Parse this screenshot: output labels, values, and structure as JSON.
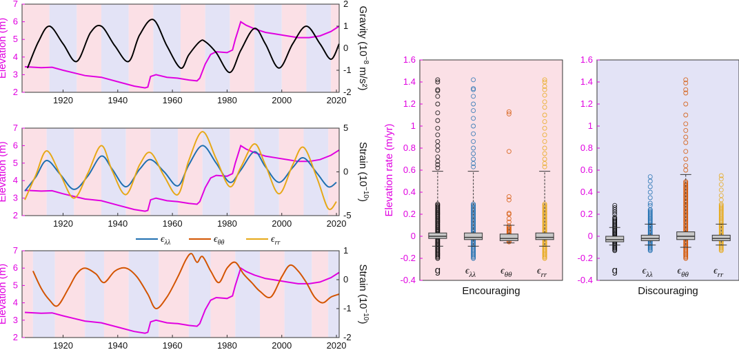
{
  "colors": {
    "elevation": "#e000e0",
    "gravity": "#000000",
    "lambda": "#1f6fb0",
    "theta": "#d35400",
    "rr": "#e6a817",
    "pink": "#fbe0e6",
    "blue": "#e3e3f6"
  },
  "chart_data": [
    {
      "type": "line",
      "panel": "gravity",
      "xlim": [
        1905,
        2021
      ],
      "xticks": [
        1920,
        1940,
        1960,
        1980,
        2000,
        2020
      ],
      "left_axis": {
        "label": "Elevation (m)",
        "ylim": [
          2,
          7
        ],
        "ticks": [
          2,
          3,
          4,
          5,
          6,
          7
        ]
      },
      "right_axis": {
        "label": "Gravity (10⁻⁸ m/s²)",
        "ylim": [
          -2,
          2
        ],
        "ticks": [
          -2,
          -1,
          0,
          1,
          2
        ]
      },
      "bands": [
        {
          "x0": 1905,
          "x1": 1915,
          "c": "p"
        },
        {
          "x0": 1915,
          "x1": 1925,
          "c": "b"
        },
        {
          "x0": 1925,
          "x1": 1934,
          "c": "p"
        },
        {
          "x0": 1934,
          "x1": 1944,
          "c": "b"
        },
        {
          "x0": 1944,
          "x1": 1953,
          "c": "p"
        },
        {
          "x0": 1953,
          "x1": 1963,
          "c": "b"
        },
        {
          "x0": 1963,
          "x1": 1972,
          "c": "p"
        },
        {
          "x0": 1972,
          "x1": 1981,
          "c": "b"
        },
        {
          "x0": 1981,
          "x1": 1990,
          "c": "p"
        },
        {
          "x0": 1990,
          "x1": 2000,
          "c": "b"
        },
        {
          "x0": 2000,
          "x1": 2009,
          "c": "p"
        },
        {
          "x0": 2009,
          "x1": 2018,
          "c": "b"
        },
        {
          "x0": 2018,
          "x1": 2021,
          "c": "p"
        }
      ],
      "series": [
        {
          "name": "gravity",
          "axis": "right",
          "color": "#000000",
          "x": [
            1907,
            1911,
            1915,
            1920,
            1925,
            1930,
            1934,
            1939,
            1944,
            1948,
            1953,
            1958,
            1963,
            1966,
            1970,
            1972,
            1976,
            1981,
            1985,
            1990,
            1994,
            1999,
            2004,
            2009,
            2014,
            2018,
            2021
          ],
          "y": [
            -0.9,
            0.3,
            1.0,
            0.2,
            -0.6,
            0.7,
            1.0,
            0.1,
            -0.6,
            0.6,
            1.3,
            0.1,
            -0.9,
            -0.3,
            0.3,
            0.3,
            -0.2,
            -1.1,
            -0.1,
            0.9,
            0.2,
            -0.9,
            0.2,
            1.0,
            0.2,
            -0.5,
            0.2
          ]
        }
      ]
    },
    {
      "type": "line",
      "panel": "strain",
      "xlim": [
        1905,
        2021
      ],
      "xticks": [
        1920,
        1940,
        1960,
        1980,
        2000,
        2020
      ],
      "left_axis": {
        "label": "Elevation (m)",
        "ylim": [
          2,
          7
        ],
        "ticks": [
          2,
          3,
          4,
          5,
          6,
          7
        ]
      },
      "right_axis": {
        "label": "Strain (10⁻¹⁰)",
        "ylim": [
          -5,
          5
        ],
        "ticks": [
          -5,
          0,
          5
        ]
      },
      "bands": [
        {
          "x0": 1905,
          "x1": 1914,
          "c": "p"
        },
        {
          "x0": 1914,
          "x1": 1924,
          "c": "b"
        },
        {
          "x0": 1924,
          "x1": 1934,
          "c": "p"
        },
        {
          "x0": 1934,
          "x1": 1943,
          "c": "b"
        },
        {
          "x0": 1943,
          "x1": 1952,
          "c": "p"
        },
        {
          "x0": 1952,
          "x1": 1962,
          "c": "b"
        },
        {
          "x0": 1962,
          "x1": 1971,
          "c": "p"
        },
        {
          "x0": 1971,
          "x1": 1981,
          "c": "b"
        },
        {
          "x0": 1981,
          "x1": 1990,
          "c": "p"
        },
        {
          "x0": 1990,
          "x1": 1999,
          "c": "b"
        },
        {
          "x0": 1999,
          "x1": 2008,
          "c": "p"
        },
        {
          "x0": 2008,
          "x1": 2017,
          "c": "b"
        },
        {
          "x0": 2017,
          "x1": 2021,
          "c": "p"
        }
      ],
      "legend": [
        {
          "symbol": "ϵ",
          "sub": "λλ",
          "color": "#1f6fb0"
        },
        {
          "symbol": "ϵ",
          "sub": "θθ",
          "color": "#d35400"
        },
        {
          "symbol": "ϵ",
          "sub": "rr",
          "color": "#e6a817"
        }
      ],
      "series": [
        {
          "name": "ϵλλ",
          "axis": "right",
          "color": "#1f6fb0",
          "x": [
            1906,
            1910,
            1914,
            1919,
            1924,
            1929,
            1934,
            1938,
            1943,
            1948,
            1952,
            1957,
            1962,
            1966,
            1971,
            1976,
            1981,
            1985,
            1990,
            1994,
            1999,
            2004,
            2008,
            2013,
            2017,
            2020
          ],
          "y": [
            -2.2,
            -0.6,
            1.3,
            -0.3,
            -2.0,
            -0.5,
            1.8,
            0.3,
            -1.7,
            0.3,
            1.4,
            0.0,
            -1.6,
            0.8,
            3.0,
            1.0,
            -1.2,
            0.2,
            2.3,
            0.6,
            -1.2,
            0.5,
            1.6,
            -0.2,
            -1.7,
            -1.2
          ]
        },
        {
          "name": "ϵrr",
          "axis": "right",
          "color": "#e6a817",
          "x": [
            1906,
            1910,
            1914,
            1919,
            1924,
            1929,
            1934,
            1938,
            1943,
            1948,
            1952,
            1957,
            1962,
            1966,
            1971,
            1976,
            1981,
            1985,
            1990,
            1994,
            1999,
            2004,
            2008,
            2013,
            2017,
            2020
          ],
          "y": [
            -3.2,
            -0.4,
            2.4,
            -0.3,
            -3.0,
            -0.2,
            3.0,
            0.1,
            -2.6,
            0.8,
            2.2,
            -0.5,
            -2.6,
            1.3,
            4.6,
            1.5,
            -1.7,
            0.5,
            3.2,
            0.8,
            -2.5,
            0.8,
            2.8,
            -0.8,
            -4.2,
            -3.4
          ]
        }
      ]
    },
    {
      "type": "line",
      "panel": "strain-theta",
      "xlim": [
        1905,
        2021
      ],
      "xticks": [
        1920,
        1940,
        1960,
        1980,
        2000,
        2020
      ],
      "left_axis": {
        "label": "Elevation (m)",
        "ylim": [
          2,
          7
        ],
        "ticks": [
          2,
          3,
          4,
          5,
          6,
          7
        ]
      },
      "right_axis": {
        "label": "Strain (10⁻¹⁰)",
        "ylim": [
          -2,
          1
        ],
        "ticks": [
          -2,
          -1,
          0,
          1
        ]
      },
      "bands": [
        {
          "x0": 1905,
          "x1": 1909,
          "c": "p"
        },
        {
          "x0": 1909,
          "x1": 1917,
          "c": "b"
        },
        {
          "x0": 1917,
          "x1": 1928,
          "c": "p"
        },
        {
          "x0": 1928,
          "x1": 1935,
          "c": "b"
        },
        {
          "x0": 1935,
          "x1": 1944,
          "c": "p"
        },
        {
          "x0": 1944,
          "x1": 1955,
          "c": "b"
        },
        {
          "x0": 1955,
          "x1": 1966,
          "c": "p"
        },
        {
          "x0": 1966,
          "x1": 1974,
          "c": "b"
        },
        {
          "x0": 1974,
          "x1": 1983,
          "c": "p"
        },
        {
          "x0": 1983,
          "x1": 1992,
          "c": "b"
        },
        {
          "x0": 1992,
          "x1": 2001,
          "c": "p"
        },
        {
          "x0": 2001,
          "x1": 2011,
          "c": "b"
        },
        {
          "x0": 2011,
          "x1": 2017,
          "c": "p"
        },
        {
          "x0": 2017,
          "x1": 2021,
          "c": "b"
        }
      ],
      "series": [
        {
          "name": "ϵθθ",
          "axis": "right",
          "color": "#d35400",
          "x": [
            1909,
            1912,
            1915,
            1918,
            1922,
            1925,
            1928,
            1932,
            1935,
            1939,
            1943,
            1947,
            1951,
            1954,
            1958,
            1962,
            1965,
            1967,
            1969,
            1971,
            1974,
            1977,
            1980,
            1983,
            1986,
            1989,
            1992,
            1996,
            2000,
            2003,
            2006,
            2009,
            2012,
            2015,
            2018,
            2021
          ],
          "y": [
            0.3,
            -0.3,
            -0.7,
            -0.9,
            -0.3,
            0.2,
            0.4,
            0.2,
            -0.1,
            0.3,
            0.4,
            0.1,
            -0.5,
            -1.0,
            -0.6,
            0.1,
            0.7,
            0.9,
            0.6,
            0.8,
            0.3,
            -0.1,
            0.4,
            0.6,
            0.2,
            -0.1,
            -0.4,
            -0.6,
            0.1,
            0.5,
            0.3,
            -0.1,
            -0.6,
            -0.8,
            -0.6,
            -0.5
          ]
        }
      ]
    },
    {
      "type": "line",
      "panel": "elevation-shared",
      "series": [
        {
          "name": "Elevation",
          "axis": "left",
          "color": "#e000e0",
          "x": [
            1906,
            1912,
            1916,
            1920,
            1924,
            1928,
            1934,
            1940,
            1946,
            1950,
            1951,
            1952,
            1954,
            1958,
            1962,
            1966,
            1969,
            1970,
            1972,
            1974,
            1976,
            1980,
            1982,
            1983,
            1984,
            1985,
            1987,
            1990,
            1994,
            1998,
            2002,
            2006,
            2010,
            2014,
            2018,
            2021
          ],
          "y": [
            3.45,
            3.4,
            3.42,
            3.25,
            3.1,
            2.95,
            2.85,
            2.6,
            2.35,
            2.25,
            2.3,
            2.9,
            3.0,
            2.85,
            2.8,
            2.7,
            2.65,
            2.8,
            3.6,
            4.15,
            4.3,
            4.25,
            4.4,
            5.0,
            5.5,
            6.0,
            5.8,
            5.6,
            5.4,
            5.3,
            5.2,
            5.1,
            5.1,
            5.2,
            5.45,
            5.75
          ]
        }
      ]
    },
    {
      "type": "box",
      "title": "Encouraging",
      "ylabel": "Elevation rate (m/yr)",
      "ylim": [
        -0.4,
        1.6
      ],
      "yticks": [
        -0.4,
        -0.2,
        0,
        0.2,
        0.4,
        0.6,
        0.8,
        1,
        1.2,
        1.4,
        1.6
      ],
      "background": "pink",
      "categories": [
        {
          "name": "g",
          "sub": "",
          "color": "#000000",
          "min": -0.08,
          "q1": -0.02,
          "median": 0.0,
          "q3": 0.03,
          "max": 0.59,
          "whisker_lo": -0.09,
          "dense_lo": -0.2,
          "dense_hi": 0.3,
          "outliers": [
            0.62,
            0.65,
            0.68,
            0.72,
            0.78,
            0.82,
            0.86,
            0.92,
            0.98,
            1.05,
            1.12,
            1.2,
            1.27,
            1.32,
            1.33,
            1.4,
            1.42
          ]
        },
        {
          "name": "ϵ",
          "sub": "λλ",
          "color": "#1f6fb0",
          "min": -0.08,
          "q1": -0.03,
          "median": -0.01,
          "q3": 0.03,
          "max": 0.59,
          "whisker_lo": -0.09,
          "dense_lo": -0.2,
          "dense_hi": 0.3,
          "outliers": [
            0.63,
            0.66,
            0.7,
            0.75,
            0.8,
            0.86,
            0.93,
            1.0,
            1.07,
            1.14,
            1.2,
            1.27,
            1.33,
            1.34,
            1.42
          ]
        },
        {
          "name": "ϵ",
          "sub": "θθ",
          "color": "#d35400",
          "min": -0.06,
          "q1": -0.04,
          "median": -0.02,
          "q3": 0.02,
          "max": 0.1,
          "whisker_lo": -0.06,
          "dense_lo": -0.05,
          "dense_hi": 0.1,
          "outliers": [
            0.13,
            0.16,
            0.2,
            0.21,
            0.33,
            0.36,
            0.77,
            1.11,
            1.13
          ]
        },
        {
          "name": "ϵ",
          "sub": "rr",
          "color": "#e6a817",
          "min": -0.09,
          "q1": -0.03,
          "median": -0.01,
          "q3": 0.03,
          "max": 0.59,
          "whisker_lo": -0.09,
          "dense_lo": -0.2,
          "dense_hi": 0.3,
          "outliers": [
            0.63,
            0.66,
            0.7,
            0.75,
            0.8,
            0.86,
            0.92,
            0.98,
            1.04,
            1.1,
            1.17,
            1.22,
            1.28,
            1.33,
            1.36,
            1.4,
            1.42
          ]
        }
      ]
    },
    {
      "type": "box",
      "title": "Discouraging",
      "ylabel": "",
      "ylim": [
        -0.4,
        1.6
      ],
      "yticks": [
        -0.4,
        -0.2,
        0,
        0.2,
        0.4,
        0.6,
        0.8,
        1,
        1.2,
        1.4,
        1.6
      ],
      "background": "blue",
      "categories": [
        {
          "name": "g",
          "sub": "",
          "color": "#000000",
          "min": -0.08,
          "q1": -0.05,
          "median": -0.03,
          "q3": 0.0,
          "max": 0.08,
          "whisker_lo": -0.08,
          "dense_lo": -0.13,
          "dense_hi": 0.18,
          "outliers": [
            0.2,
            0.22,
            0.24,
            0.26,
            0.28
          ]
        },
        {
          "name": "ϵ",
          "sub": "λλ",
          "color": "#1f6fb0",
          "min": -0.08,
          "q1": -0.04,
          "median": -0.02,
          "q3": 0.01,
          "max": 0.11,
          "whisker_lo": -0.08,
          "dense_lo": -0.13,
          "dense_hi": 0.25,
          "outliers": [
            0.28,
            0.3,
            0.35,
            0.4,
            0.45,
            0.5,
            0.54
          ]
        },
        {
          "name": "ϵ",
          "sub": "θθ",
          "color": "#d35400",
          "min": -0.1,
          "q1": -0.03,
          "median": 0.0,
          "q3": 0.04,
          "max": 0.56,
          "whisker_lo": -0.1,
          "dense_lo": -0.2,
          "dense_hi": 0.5,
          "outliers": [
            0.6,
            0.64,
            0.7,
            0.77,
            0.85,
            0.9,
            0.96,
            1.02,
            1.1,
            1.2,
            1.3,
            1.33,
            1.39,
            1.42
          ]
        },
        {
          "name": "ϵ",
          "sub": "rr",
          "color": "#e6a817",
          "min": -0.08,
          "q1": -0.04,
          "median": -0.02,
          "q3": 0.01,
          "max": 0.11,
          "whisker_lo": -0.08,
          "dense_lo": -0.13,
          "dense_hi": 0.3,
          "outliers": [
            0.33,
            0.37,
            0.42,
            0.47,
            0.52,
            0.55
          ]
        }
      ]
    }
  ]
}
